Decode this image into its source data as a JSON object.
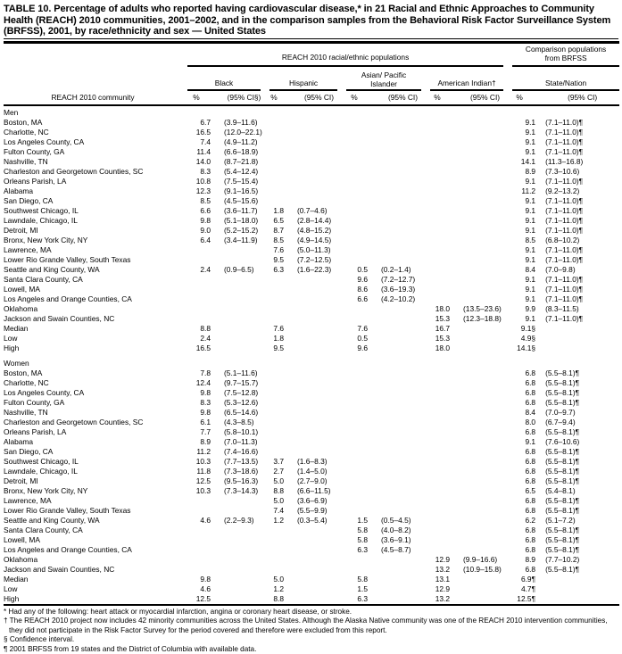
{
  "title": "TABLE 10. Percentage of adults who reported having cardiovascular disease,* in 21 Racial and Ethnic Approaches to Community Health (REACH) 2010 communities, 2001–2002, and in the comparison samples from the Behavioral Risk Factor Surveillance System (BRFSS), 2001, by race/ethnicity and sex — United States",
  "header": {
    "reach_group": "REACH 2010 racial/ethnic populations",
    "comparison_group": "Comparison populations from BRFSS",
    "groups": [
      "Black",
      "Hispanic",
      "Asian/ Pacific Islander",
      "American Indian†",
      "State/Nation"
    ],
    "community_col": "REACH 2010 community",
    "sub": [
      "%",
      "(95% CI§)",
      "%",
      "(95% CI)",
      "%",
      "(95% CI)",
      "%",
      "(95% CI)",
      "%",
      "(95% CI)"
    ]
  },
  "sections": [
    {
      "label": "Men",
      "rows": [
        [
          "Boston, MA",
          "6.7",
          "(3.9–11.6)",
          "",
          "",
          "",
          "",
          "",
          "",
          "9.1",
          "(7.1–11.0)¶"
        ],
        [
          "Charlotte, NC",
          "16.5",
          "(12.0–22.1)",
          "",
          "",
          "",
          "",
          "",
          "",
          "9.1",
          "(7.1–11.0)¶"
        ],
        [
          "Los Angeles County, CA",
          "7.4",
          "(4.9–11.2)",
          "",
          "",
          "",
          "",
          "",
          "",
          "9.1",
          "(7.1–11.0)¶"
        ],
        [
          "Fulton County, GA",
          "11.4",
          "(6.6–18.9)",
          "",
          "",
          "",
          "",
          "",
          "",
          "9.1",
          "(7.1–11.0)¶"
        ],
        [
          "Nashville, TN",
          "14.0",
          "(8.7–21.8)",
          "",
          "",
          "",
          "",
          "",
          "",
          "14.1",
          "(11.3–16.8)"
        ],
        [
          "Charleston and Georgetown Counties, SC",
          "8.3",
          "(5.4–12.4)",
          "",
          "",
          "",
          "",
          "",
          "",
          "8.9",
          "(7.3–10.6)"
        ],
        [
          "Orleans Parish, LA",
          "10.8",
          "(7.5–15.4)",
          "",
          "",
          "",
          "",
          "",
          "",
          "9.1",
          "(7.1–11.0)¶"
        ],
        [
          "Alabama",
          "12.3",
          "(9.1–16.5)",
          "",
          "",
          "",
          "",
          "",
          "",
          "11.2",
          "(9.2–13.2)"
        ],
        [
          "San Diego, CA",
          "8.5",
          "(4.5–15.6)",
          "",
          "",
          "",
          "",
          "",
          "",
          "9.1",
          "(7.1–11.0)¶"
        ],
        [
          "Southwest Chicago, IL",
          "6.6",
          "(3.6–11.7)",
          "1.8",
          "(0.7–4.6)",
          "",
          "",
          "",
          "",
          "9.1",
          "(7.1–11.0)¶"
        ],
        [
          "Lawndale, Chicago, IL",
          "9.8",
          "(5.1–18.0)",
          "6.5",
          "(2.8–14.4)",
          "",
          "",
          "",
          "",
          "9.1",
          "(7.1–11.0)¶"
        ],
        [
          "Detroit, MI",
          "9.0",
          "(5.2–15.2)",
          "8.7",
          "(4.8–15.2)",
          "",
          "",
          "",
          "",
          "9.1",
          "(7.1–11.0)¶"
        ],
        [
          "Bronx, New York City, NY",
          "6.4",
          "(3.4–11.9)",
          "8.5",
          "(4.9–14.5)",
          "",
          "",
          "",
          "",
          "8.5",
          "(6.8–10.2)"
        ],
        [
          "Lawrence, MA",
          "",
          "",
          "7.6",
          "(5.0–11.3)",
          "",
          "",
          "",
          "",
          "9.1",
          "(7.1–11.0)¶"
        ],
        [
          "Lower Rio Grande Valley, South Texas",
          "",
          "",
          "9.5",
          "(7.2–12.5)",
          "",
          "",
          "",
          "",
          "9.1",
          "(7.1–11.0)¶"
        ],
        [
          "Seattle and King County, WA",
          "2.4",
          "(0.9–6.5)",
          "6.3",
          "(1.6–22.3)",
          "0.5",
          "(0.2–1.4)",
          "",
          "",
          "8.4",
          "(7.0–9.8)"
        ],
        [
          "Santa Clara County, CA",
          "",
          "",
          "",
          "",
          "9.6",
          "(7.2–12.7)",
          "",
          "",
          "9.1",
          "(7.1–11.0)¶"
        ],
        [
          "Lowell, MA",
          "",
          "",
          "",
          "",
          "8.6",
          "(3.6–19.3)",
          "",
          "",
          "9.1",
          "(7.1–11.0)¶"
        ],
        [
          "Los Angeles and Orange Counties, CA",
          "",
          "",
          "",
          "",
          "6.6",
          "(4.2–10.2)",
          "",
          "",
          "9.1",
          "(7.1–11.0)¶"
        ],
        [
          "Oklahoma",
          "",
          "",
          "",
          "",
          "",
          "",
          "18.0",
          "(13.5–23.6)",
          "9.9",
          "(8.3–11.5)"
        ],
        [
          "Jackson and Swain Counties, NC",
          "",
          "",
          "",
          "",
          "",
          "",
          "15.3",
          "(12.3–18.8)",
          "9.1",
          "(7.1–11.0)¶"
        ],
        [
          "Median",
          "8.8",
          "",
          "7.6",
          "",
          "7.6",
          "",
          "16.7",
          "",
          "9.1§",
          ""
        ],
        [
          "Low",
          "2.4",
          "",
          "1.8",
          "",
          "0.5",
          "",
          "15.3",
          "",
          "4.9§",
          ""
        ],
        [
          "High",
          "16.5",
          "",
          "9.5",
          "",
          "9.6",
          "",
          "18.0",
          "",
          "14.1§",
          ""
        ]
      ]
    },
    {
      "label": "Women",
      "rows": [
        [
          "Boston, MA",
          "7.8",
          "(5.1–11.6)",
          "",
          "",
          "",
          "",
          "",
          "",
          "6.8",
          "(5.5–8.1)¶"
        ],
        [
          "Charlotte, NC",
          "12.4",
          "(9.7–15.7)",
          "",
          "",
          "",
          "",
          "",
          "",
          "6.8",
          "(5.5–8.1)¶"
        ],
        [
          "Los Angeles County, CA",
          "9.8",
          "(7.5–12.8)",
          "",
          "",
          "",
          "",
          "",
          "",
          "6.8",
          "(5.5–8.1)¶"
        ],
        [
          "Fulton County, GA",
          "8.3",
          "(5.3–12.6)",
          "",
          "",
          "",
          "",
          "",
          "",
          "6.8",
          "(5.5–8.1)¶"
        ],
        [
          "Nashville, TN",
          "9.8",
          "(6.5–14.6)",
          "",
          "",
          "",
          "",
          "",
          "",
          "8.4",
          "(7.0–9.7)"
        ],
        [
          "Charleston and Georgetown Counties, SC",
          "6.1",
          "(4.3–8.5)",
          "",
          "",
          "",
          "",
          "",
          "",
          "8.0",
          "(6.7–9.4)"
        ],
        [
          "Orleans Parish, LA",
          "7.7",
          "(5.8–10.1)",
          "",
          "",
          "",
          "",
          "",
          "",
          "6.8",
          "(5.5–8.1)¶"
        ],
        [
          "Alabama",
          "8.9",
          "(7.0–11.3)",
          "",
          "",
          "",
          "",
          "",
          "",
          "9.1",
          "(7.6–10.6)"
        ],
        [
          "San Diego, CA",
          "11.2",
          "(7.4–16.6)",
          "",
          "",
          "",
          "",
          "",
          "",
          "6.8",
          "(5.5–8.1)¶"
        ],
        [
          "Southwest Chicago, IL",
          "10.3",
          "(7.7–13.5)",
          "3.7",
          "(1.6–8.3)",
          "",
          "",
          "",
          "",
          "6.8",
          "(5.5–8.1)¶"
        ],
        [
          "Lawndale, Chicago, IL",
          "11.8",
          "(7.3–18.6)",
          "2.7",
          "(1.4–5.0)",
          "",
          "",
          "",
          "",
          "6.8",
          "(5.5–8.1)¶"
        ],
        [
          "Detroit, MI",
          "12.5",
          "(9.5–16.3)",
          "5.0",
          "(2.7–9.0)",
          "",
          "",
          "",
          "",
          "6.8",
          "(5.5–8.1)¶"
        ],
        [
          "Bronx, New York City, NY",
          "10.3",
          "(7.3–14.3)",
          "8.8",
          "(6.6–11.5)",
          "",
          "",
          "",
          "",
          "6.5",
          "(5.4–8.1)"
        ],
        [
          "Lawrence, MA",
          "",
          "",
          "5.0",
          "(3.6–6.9)",
          "",
          "",
          "",
          "",
          "6.8",
          "(5.5–8.1)¶"
        ],
        [
          "Lower Rio Grande Valley, South Texas",
          "",
          "",
          "7.4",
          "(5.5–9.9)",
          "",
          "",
          "",
          "",
          "6.8",
          "(5.5–8.1)¶"
        ],
        [
          "Seattle and King County, WA",
          "4.6",
          "(2.2–9.3)",
          "1.2",
          "(0.3–5.4)",
          "1.5",
          "(0.5–4.5)",
          "",
          "",
          "6.2",
          "(5.1–7.2)"
        ],
        [
          "Santa Clara County, CA",
          "",
          "",
          "",
          "",
          "5.8",
          "(4.0–8.2)",
          "",
          "",
          "6.8",
          "(5.5–8.1)¶"
        ],
        [
          "Lowell, MA",
          "",
          "",
          "",
          "",
          "5.8",
          "(3.6–9.1)",
          "",
          "",
          "6.8",
          "(5.5–8.1)¶"
        ],
        [
          "Los Angeles and Orange Counties, CA",
          "",
          "",
          "",
          "",
          "6.3",
          "(4.5–8.7)",
          "",
          "",
          "6.8",
          "(5.5–8.1)¶"
        ],
        [
          "Oklahoma",
          "",
          "",
          "",
          "",
          "",
          "",
          "12.9",
          "(9.9–16.6)",
          "8.9",
          "(7.7–10.2)"
        ],
        [
          "Jackson and Swain Counties, NC",
          "",
          "",
          "",
          "",
          "",
          "",
          "13.2",
          "(10.9–15.8)",
          "6.8",
          "(5.5–8.1)¶"
        ],
        [
          "Median",
          "9.8",
          "",
          "5.0",
          "",
          "5.8",
          "",
          "13.1",
          "",
          "6.9¶",
          ""
        ],
        [
          "Low",
          "4.6",
          "",
          "1.2",
          "",
          "1.5",
          "",
          "12.9",
          "",
          "4.7¶",
          ""
        ],
        [
          "High",
          "12.5",
          "",
          "8.8",
          "",
          "6.3",
          "",
          "13.2",
          "",
          "12.5¶",
          ""
        ]
      ]
    }
  ],
  "footnotes": [
    "* Had any of the following: heart attack or myocardial infarction, angina or coronary heart disease, or stroke.",
    "† The REACH 2010 project now includes 42 minority communities across the United States. Although the Alaska Native community was one of the REACH 2010 intervention communities, they did not participate in the Risk Factor Survey for the period covered and therefore were excluded from this report.",
    "§ Confidence interval.",
    "¶ 2001 BRFSS from 19 states and the District of Columbia with available data."
  ]
}
